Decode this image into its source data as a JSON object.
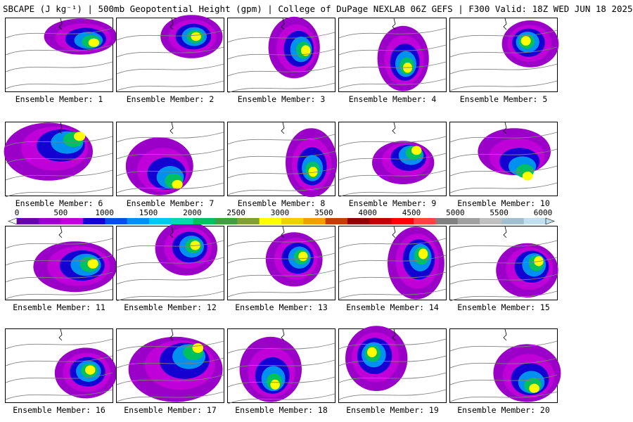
{
  "title": "SBCAPE (J kg⁻¹) | 500mb Geopotential Height (gpm) | College of DuPage NEXLAB 06Z GEFS | F300 Valid: 18Z WED JUN 18 2025",
  "panel_label_prefix": "Ensemble Member: ",
  "colorbar": {
    "min": 0,
    "max": 6000,
    "tick_labels": [
      "0",
      "500",
      "1000",
      "1500",
      "2000",
      "2500",
      "3000",
      "3500",
      "4000",
      "4500",
      "5000",
      "5500",
      "6000"
    ],
    "colors": [
      "#6a00a8",
      "#9a00c8",
      "#c000d8",
      "#1400d0",
      "#0050e8",
      "#0090f0",
      "#00c8f0",
      "#00d8b0",
      "#00c060",
      "#40a040",
      "#80a030",
      "#ffff00",
      "#f0d000",
      "#f0a000",
      "#c04000",
      "#900000",
      "#c00000",
      "#ff0000",
      "#ff4040",
      "#808080",
      "#a0a0a0",
      "#c0c0c0",
      "#a0c0d0",
      "#c0e0f0"
    ]
  },
  "members": [
    {
      "id": "1",
      "label": "1",
      "icon": "sbcape-map-member-1"
    },
    {
      "id": "2",
      "label": "2",
      "icon": "sbcape-map-member-2"
    },
    {
      "id": "3",
      "label": "3",
      "icon": "sbcape-map-member-3"
    },
    {
      "id": "4",
      "label": "4",
      "icon": "sbcape-map-member-4"
    },
    {
      "id": "5",
      "label": "5",
      "icon": "sbcape-map-member-5"
    },
    {
      "id": "6",
      "label": "6",
      "icon": "sbcape-map-member-6"
    },
    {
      "id": "7",
      "label": "7",
      "icon": "sbcape-map-member-7"
    },
    {
      "id": "8",
      "label": "8",
      "icon": "sbcape-map-member-8"
    },
    {
      "id": "9",
      "label": "9",
      "icon": "sbcape-map-member-9"
    },
    {
      "id": "10",
      "label": "10",
      "icon": "sbcape-map-member-10"
    },
    {
      "id": "11",
      "label": "11",
      "icon": "sbcape-map-member-11"
    },
    {
      "id": "12",
      "label": "12",
      "icon": "sbcape-map-member-12"
    },
    {
      "id": "13",
      "label": "13",
      "icon": "sbcape-map-member-13"
    },
    {
      "id": "14",
      "label": "14",
      "icon": "sbcape-map-member-14"
    },
    {
      "id": "15",
      "label": "15",
      "icon": "sbcape-map-member-15"
    },
    {
      "id": "16",
      "label": "16",
      "icon": "sbcape-map-member-16"
    },
    {
      "id": "17",
      "label": "17",
      "icon": "sbcape-map-member-17"
    },
    {
      "id": "18",
      "label": "18",
      "icon": "sbcape-map-member-18"
    },
    {
      "id": "19",
      "label": "19",
      "icon": "sbcape-map-member-19"
    },
    {
      "id": "20",
      "label": "20",
      "icon": "sbcape-map-member-20"
    }
  ]
}
